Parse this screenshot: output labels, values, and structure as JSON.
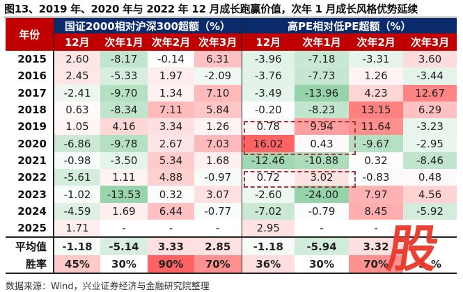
{
  "title": "图13、2019 年、2020 年与 2022 年 12 月成长跑赢价值，次年 1 月成长风格优势延续",
  "table": {
    "year_header": "年份",
    "groups": [
      {
        "label": "国证2000相对沪深300超额（%）",
        "columns": [
          "12月",
          "次年1月",
          "次年2月",
          "次年3月"
        ]
      },
      {
        "label": "高PE相对低PE超额（%）",
        "columns": [
          "12月",
          "次年1月",
          "次年2月",
          "次年3月"
        ]
      }
    ],
    "rows": [
      {
        "year": "2015",
        "values": [
          "2.60",
          "-8.17",
          "-0.14",
          "6.31",
          "-3.96",
          "-7.18",
          "-3.31",
          "3.60"
        ]
      },
      {
        "year": "2016",
        "values": [
          "2.45",
          "-5.33",
          "1.97",
          "-2.09",
          "-3.76",
          "-7.73",
          "1.26",
          "-3.44"
        ]
      },
      {
        "year": "2017",
        "values": [
          "-2.41",
          "-9.70",
          "1.34",
          "7.10",
          "-3.49",
          "-13.96",
          "4.23",
          "12.67"
        ]
      },
      {
        "year": "2018",
        "values": [
          "0.63",
          "-8.34",
          "7.11",
          "5.84",
          "-0.20",
          "-8.23",
          "13.15",
          "6.29"
        ]
      },
      {
        "year": "2019",
        "values": [
          "1.05",
          "4.16",
          "3.34",
          "1.26",
          "0.78",
          "9.94",
          "11.64",
          "-3.23"
        ]
      },
      {
        "year": "2020",
        "values": [
          "-6.86",
          "-9.78",
          "2.67",
          "7.03",
          "16.02",
          "0.43",
          "-9.67",
          "-2.95"
        ]
      },
      {
        "year": "2021",
        "values": [
          "-0.98",
          "-3.50",
          "5.34",
          "1.68",
          "-12.46",
          "-10.88",
          "0.32",
          "-8.46"
        ]
      },
      {
        "year": "2022",
        "values": [
          "-5.61",
          "1.11",
          "4.88",
          "-0.97",
          "0.72",
          "3.02",
          "-0.83",
          "0.48"
        ]
      },
      {
        "year": "2023",
        "values": [
          "-1.02",
          "-13.53",
          "0.32",
          "3.07",
          "-2.60",
          "-24.00",
          "7.97",
          "4.56"
        ]
      },
      {
        "year": "2024",
        "values": [
          "-4.59",
          "1.69",
          "6.44",
          "-0.77",
          "-7.02",
          "-0.79",
          "8.45",
          "-5.92"
        ]
      },
      {
        "year": "2025",
        "values": [
          "1.71",
          "-",
          "-",
          "-",
          "2.95",
          "-",
          "-",
          ""
        ]
      }
    ],
    "summary": [
      {
        "label": "平均值",
        "values": [
          "-1.18",
          "-5.14",
          "3.33",
          "2.85",
          "-1.18",
          "-5.94",
          "3.32",
          ""
        ]
      },
      {
        "label": "胜率",
        "values": [
          "45%",
          "30%",
          "90%",
          "70%",
          "36%",
          "30%",
          "70%",
          "5_%"
        ]
      }
    ]
  },
  "highlights": [
    {
      "rows": [
        "2019",
        "2020"
      ],
      "columns": [
        "高PE 12月",
        "高PE 次年1月"
      ]
    },
    {
      "rows": [
        "2022"
      ],
      "columns": [
        "高PE 12月",
        "高PE 次年1月"
      ]
    }
  ],
  "source": "数据来源：Wind，兴业证券经济与金融研究院整理",
  "watermark": "股",
  "colors": {
    "header_red": "#c00000",
    "header_blue": "#0b2a6b",
    "positive": "#f06b6b",
    "negative": "#5fb87a",
    "dash": "#a33a3a"
  }
}
